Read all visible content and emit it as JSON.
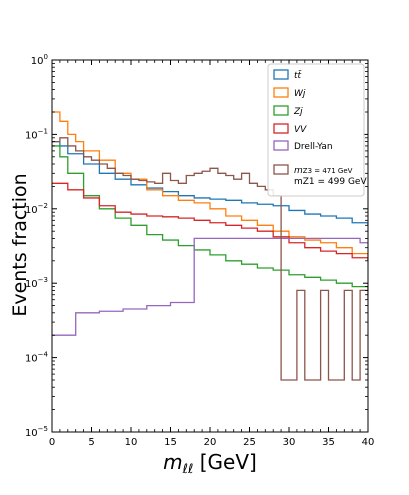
{
  "chart_data": {
    "type": "line",
    "drawstyle": "step",
    "xlabel_main": "m",
    "xlabel_sub": "ℓℓ",
    "xlabel_unit": " [GeV]",
    "ylabel": "Events fraction",
    "xlim": [
      0,
      40
    ],
    "ylim": [
      1e-05,
      1
    ],
    "yscale": "log",
    "grid": false,
    "legend_position": "top-right",
    "x_ticks": [
      0,
      5,
      10,
      15,
      20,
      25,
      30,
      35,
      40
    ],
    "x_tick_labels": [
      "0",
      "5",
      "10",
      "15",
      "20",
      "25",
      "30",
      "35",
      "40"
    ],
    "y_tick_labels": [
      {
        "base": "10",
        "exp": "0",
        "value": 1
      },
      {
        "base": "10",
        "exp": "−1",
        "value": 0.1
      },
      {
        "base": "10",
        "exp": "−2",
        "value": 0.01
      },
      {
        "base": "10",
        "exp": "−3",
        "value": 0.001
      },
      {
        "base": "10",
        "exp": "−4",
        "value": 0.0001
      },
      {
        "base": "10",
        "exp": "−5",
        "value": 1e-05
      }
    ],
    "series": [
      {
        "name": "tt̄",
        "legend_label": "tt̄",
        "color": "#1f77b4",
        "x": [
          0,
          1,
          2,
          4,
          6,
          8,
          10,
          12,
          14,
          16,
          18,
          20,
          22,
          24,
          26,
          28,
          30,
          32,
          34,
          36,
          38,
          40
        ],
        "y": [
          0.08,
          0.07,
          0.055,
          0.04,
          0.03,
          0.025,
          0.021,
          0.019,
          0.017,
          0.015,
          0.014,
          0.0135,
          0.013,
          0.012,
          0.0115,
          0.011,
          0.0095,
          0.0085,
          0.008,
          0.0075,
          0.0065,
          0.006
        ]
      },
      {
        "name": "Wj",
        "legend_label": "Wj",
        "color": "#ff7f0e",
        "x": [
          0,
          1,
          2,
          3,
          4,
          6,
          8,
          10,
          12,
          14,
          16,
          18,
          20,
          22,
          24,
          26,
          28,
          30,
          32,
          34,
          36,
          38,
          40
        ],
        "y": [
          0.2,
          0.15,
          0.1,
          0.08,
          0.06,
          0.045,
          0.03,
          0.025,
          0.018,
          0.015,
          0.013,
          0.012,
          0.01,
          0.008,
          0.007,
          0.006,
          0.005,
          0.0042,
          0.0038,
          0.0035,
          0.003,
          0.0025,
          0.002
        ]
      },
      {
        "name": "Zj",
        "legend_label": "Zj",
        "color": "#2ca02c",
        "x": [
          0,
          1,
          2,
          4,
          6,
          8,
          10,
          12,
          14,
          16,
          18,
          20,
          22,
          24,
          26,
          28,
          30,
          32,
          34,
          36,
          38,
          40
        ],
        "y": [
          0.07,
          0.05,
          0.03,
          0.015,
          0.01,
          0.0075,
          0.006,
          0.0045,
          0.0038,
          0.0032,
          0.0028,
          0.0024,
          0.002,
          0.0018,
          0.0016,
          0.0015,
          0.0013,
          0.0012,
          0.0011,
          0.001,
          0.0009,
          0.0008
        ]
      },
      {
        "name": "VV",
        "legend_label": "VV",
        "color": "#d62728",
        "x": [
          0,
          2,
          4,
          6,
          8,
          10,
          12,
          14,
          16,
          18,
          20,
          22,
          24,
          26,
          28,
          30,
          32,
          34,
          36,
          38,
          40
        ],
        "y": [
          0.022,
          0.018,
          0.014,
          0.011,
          0.009,
          0.0085,
          0.008,
          0.0078,
          0.0075,
          0.007,
          0.0065,
          0.006,
          0.0055,
          0.005,
          0.0042,
          0.0035,
          0.003,
          0.0027,
          0.0025,
          0.0022,
          0.002
        ]
      },
      {
        "name": "Drell-Yan",
        "legend_label": "Drell-Yan",
        "color": "#9467bd",
        "x": [
          0,
          3,
          6,
          9,
          12,
          15,
          18,
          21,
          24,
          27,
          30,
          33,
          36,
          39,
          40
        ],
        "y": [
          0.0002,
          0.0004,
          0.00042,
          0.00045,
          0.0005,
          0.00055,
          0.004,
          0.004,
          0.004,
          0.004,
          0.004,
          0.004,
          0.004,
          0.0035,
          0.0035
        ]
      },
      {
        "name": "mZ3 = 471 GeV, mZ1 = 499 GeV",
        "legend_label": "",
        "color": "#8c564b",
        "x": [
          0,
          1,
          2,
          3,
          4,
          5,
          6,
          7,
          8,
          9,
          10,
          11,
          12,
          13,
          14,
          15,
          16,
          17,
          18,
          19,
          20,
          21,
          22,
          23,
          24,
          25,
          26,
          27,
          28,
          29,
          30,
          31,
          32,
          33,
          34,
          35,
          36,
          37,
          38,
          39,
          40
        ],
        "y": [
          0.08,
          0.09,
          0.07,
          0.06,
          0.05,
          0.045,
          0.04,
          0.035,
          0.03,
          0.028,
          0.025,
          0.024,
          0.023,
          0.022,
          0.03,
          0.024,
          0.022,
          0.028,
          0.03,
          0.032,
          0.035,
          0.03,
          0.028,
          0.025,
          0.03,
          0.022,
          0.02,
          0.018,
          0.015,
          5e-05,
          5e-05,
          0.0008,
          5e-05,
          5e-05,
          0.0008,
          5e-05,
          5e-05,
          0.0008,
          5e-05,
          0.0008,
          0.0006
        ]
      }
    ],
    "legend": [
      {
        "label_main": "t",
        "label_extra": "t̄",
        "color": "#1f77b4"
      },
      {
        "label_main": "W",
        "label_extra": "j",
        "color": "#ff7f0e"
      },
      {
        "label_main": "Z",
        "label_extra": "j",
        "color": "#2ca02c"
      },
      {
        "label_main": "V",
        "label_extra": "V",
        "color": "#d62728"
      },
      {
        "label_main": "Drell-Yan",
        "label_extra": "",
        "color": "#9467bd"
      },
      {
        "label_main": "m",
        "label_extra": "Z3 = 471 GeV",
        "label_line2": "mZ1 = 499 GeV",
        "color": "#8c564b"
      }
    ]
  }
}
